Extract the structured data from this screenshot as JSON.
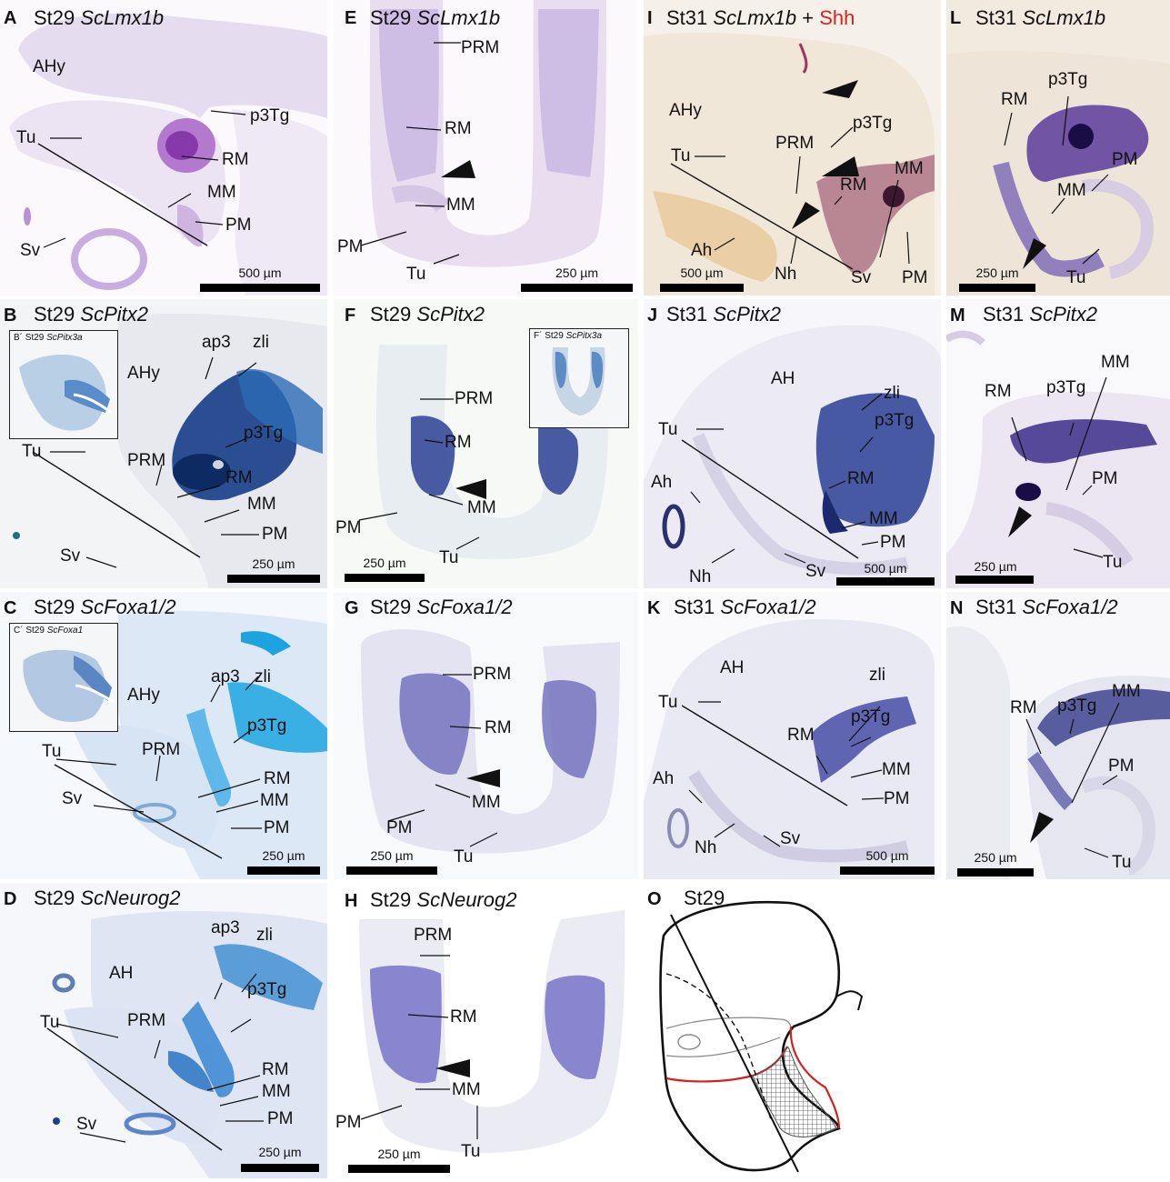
{
  "panels": {
    "A": {
      "letter": "A",
      "stage": "St29",
      "gene": "ScLmx1b",
      "scale": "500 µm",
      "labels": {
        "ahy": "AHy",
        "p3tg": "p3Tg",
        "tu": "Tu",
        "rm": "RM",
        "mm": "MM",
        "pm": "PM",
        "sv": "Sv"
      }
    },
    "B": {
      "letter": "B",
      "stage": "St29",
      "gene": "ScPitx2",
      "scale": "250 µm",
      "inset": {
        "prefix": "B´ St29",
        "gene": "ScPitx3a"
      },
      "labels": {
        "ap3": "ap3",
        "zli": "zli",
        "ahy": "AHy",
        "p3tg": "p3Tg",
        "tu": "Tu",
        "prm": "PRM",
        "rm": "RM",
        "mm": "MM",
        "pm": "PM",
        "sv": "Sv"
      }
    },
    "C": {
      "letter": "C",
      "stage": "St29",
      "gene": "ScFoxa1/2",
      "scale": "250 µm",
      "inset": {
        "prefix": "C´ St29",
        "gene": "ScFoxa1"
      },
      "labels": {
        "ap3": "ap3",
        "zli": "zli",
        "ahy": "AHy",
        "p3tg": "p3Tg",
        "tu": "Tu",
        "prm": "PRM",
        "rm": "RM",
        "mm": "MM",
        "pm": "PM",
        "sv": "Sv"
      }
    },
    "D": {
      "letter": "D",
      "stage": "St29",
      "gene": "ScNeurog2",
      "scale": "250 µm",
      "labels": {
        "ap3": "ap3",
        "zli": "zli",
        "ah": "AH",
        "p3tg": "p3Tg",
        "tu": "Tu",
        "prm": "PRM",
        "rm": "RM",
        "mm": "MM",
        "pm": "PM",
        "sv": "Sv"
      }
    },
    "E": {
      "letter": "E",
      "stage": "St29",
      "gene": "ScLmx1b",
      "scale": "250 µm",
      "labels": {
        "prm": "PRM",
        "rm": "RM",
        "mm": "MM",
        "pm": "PM",
        "tu": "Tu"
      }
    },
    "F": {
      "letter": "F",
      "stage": "St29",
      "gene": "ScPitx2",
      "scale": "250 µm",
      "inset": {
        "prefix": "F´ St29",
        "gene": "ScPitx3a"
      },
      "labels": {
        "prm": "PRM",
        "rm": "RM",
        "mm": "MM",
        "pm": "PM",
        "tu": "Tu"
      }
    },
    "G": {
      "letter": "G",
      "stage": "St29",
      "gene": "ScFoxa1/2",
      "scale": "250 µm",
      "labels": {
        "prm": "PRM",
        "rm": "RM",
        "mm": "MM",
        "pm": "PM",
        "tu": "Tu"
      }
    },
    "H": {
      "letter": "H",
      "stage": "St29",
      "gene": "ScNeurog2",
      "scale": "250 µm",
      "labels": {
        "prm": "PRM",
        "rm": "RM",
        "mm": "MM",
        "pm": "PM",
        "tu": "Tu"
      }
    },
    "I": {
      "letter": "I",
      "stage": "St31",
      "gene": "ScLmx1b",
      "plus": "+",
      "extra": "Shh",
      "scale": "500 µm",
      "labels": {
        "ahy": "AHy",
        "p3tg": "p3Tg",
        "prm": "PRM",
        "tu": "Tu",
        "rm": "RM",
        "mm": "MM",
        "ah": "Ah",
        "nh": "Nh",
        "sv": "Sv",
        "pm": "PM"
      }
    },
    "J": {
      "letter": "J",
      "stage": "St31",
      "gene": "ScPitx2",
      "scale": "500 µm",
      "labels": {
        "ah_upper": "AH",
        "zli": "zli",
        "tu": "Tu",
        "p3tg": "p3Tg",
        "ah": "Ah",
        "rm": "RM",
        "mm": "MM",
        "pm": "PM",
        "nh": "Nh",
        "sv": "Sv"
      }
    },
    "K": {
      "letter": "K",
      "stage": "St31",
      "gene": "ScFoxa1/2",
      "scale": "500 µm",
      "labels": {
        "ah_upper": "AH",
        "zli": "zli",
        "tu": "Tu",
        "rm": "RM",
        "p3tg": "p3Tg",
        "mm": "MM",
        "ah": "Ah",
        "pm": "PM",
        "nh": "Nh",
        "sv": "Sv"
      }
    },
    "L": {
      "letter": "L",
      "stage": "St31",
      "gene": "ScLmx1b",
      "scale": "250 µm",
      "labels": {
        "rm": "RM",
        "p3tg": "p3Tg",
        "pm": "PM",
        "mm": "MM",
        "tu": "Tu"
      }
    },
    "M": {
      "letter": "M",
      "stage": "St31",
      "gene": "ScPitx2",
      "scale": "250 µm",
      "labels": {
        "rm": "RM",
        "p3tg": "p3Tg",
        "mm": "MM",
        "pm": "PM",
        "tu": "Tu"
      }
    },
    "N": {
      "letter": "N",
      "stage": "St31",
      "gene": "ScFoxa1/2",
      "scale": "250 µm",
      "labels": {
        "rm": "RM",
        "p3tg": "p3Tg",
        "mm": "MM",
        "pm": "PM",
        "tu": "Tu"
      }
    },
    "O": {
      "letter": "O",
      "stage": "St29"
    }
  },
  "colors": {
    "lmx1b_stain": "#7a3fb0",
    "pitx2_stain": "#1a3f8c",
    "foxa_stain": "#19a6e0",
    "neurog_stain": "#2a7fd0",
    "shh_red": "#e0201a",
    "tissue_purple": "#e8dcf0",
    "tissue_blue": "#dde6f4"
  }
}
